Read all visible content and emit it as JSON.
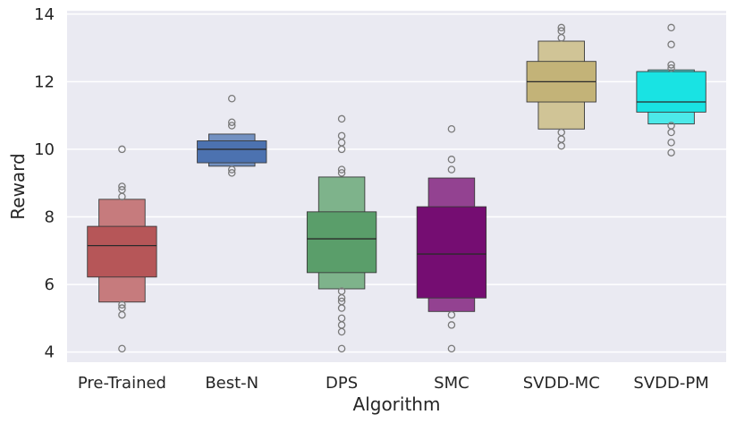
{
  "chart_data": {
    "type": "boxen",
    "xlabel": "Algorithm",
    "ylabel": "Reward",
    "ylim": [
      3.7,
      14.1
    ],
    "yticks": [
      4,
      6,
      8,
      10,
      12,
      14
    ],
    "grid": true,
    "background": "#eaeaf2",
    "categories": [
      {
        "name": "Pre-Trained",
        "color": "#b65658",
        "median": 7.15,
        "levels": [
          [
            6.22,
            7.72
          ],
          [
            5.48,
            8.52
          ]
        ],
        "outliers": [
          10.0,
          8.9,
          8.8,
          8.6,
          5.4,
          5.3,
          5.1,
          4.1
        ]
      },
      {
        "name": "Best-N",
        "color": "#4c72b0",
        "median": 10.0,
        "levels": [
          [
            9.6,
            10.25
          ],
          [
            9.5,
            10.45
          ]
        ],
        "outliers": [
          11.5,
          10.8,
          10.7,
          9.4,
          9.3
        ]
      },
      {
        "name": "DPS",
        "color": "#5a9e6a",
        "median": 7.35,
        "levels": [
          [
            6.35,
            8.15
          ],
          [
            5.87,
            9.18
          ]
        ],
        "outliers": [
          10.9,
          10.4,
          10.2,
          10.0,
          9.4,
          9.3,
          5.8,
          5.6,
          5.5,
          5.3,
          5.0,
          4.8,
          4.6,
          4.1
        ]
      },
      {
        "name": "SMC",
        "color": "#750d72",
        "median": 6.9,
        "levels": [
          [
            5.6,
            8.3
          ],
          [
            5.2,
            9.15
          ]
        ],
        "outliers": [
          10.6,
          9.7,
          9.4,
          5.1,
          4.8,
          4.1
        ]
      },
      {
        "name": "SVDD-MC",
        "color": "#c3b378",
        "median": 12.0,
        "levels": [
          [
            11.4,
            12.6
          ],
          [
            10.6,
            13.2
          ]
        ],
        "outliers": [
          13.6,
          13.5,
          13.3,
          10.5,
          10.3,
          10.1
        ]
      },
      {
        "name": "SVDD-PM",
        "color": "#19e3e3",
        "median": 11.4,
        "levels": [
          [
            11.1,
            12.3
          ],
          [
            10.75,
            12.35
          ]
        ],
        "outliers": [
          13.6,
          13.1,
          12.5,
          12.4,
          10.7,
          10.5,
          10.2,
          9.9
        ]
      }
    ]
  }
}
